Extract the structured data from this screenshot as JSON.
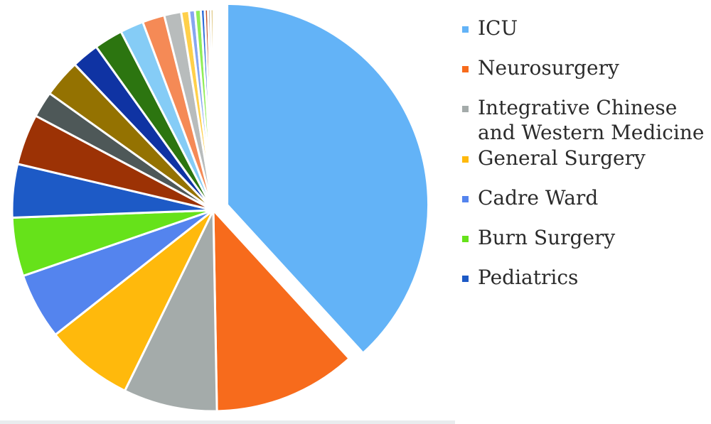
{
  "chart_data": {
    "type": "pie",
    "title": "",
    "legend_position": "right",
    "exploded_first_slice": true,
    "slices": [
      {
        "label": "ICU",
        "value": 36.5,
        "color": "#63b3f7"
      },
      {
        "label": "Neurosurgery",
        "value": 11.0,
        "color": "#f76b1c"
      },
      {
        "label": "Integrative Chinese and Western Medicine",
        "value": 7.2,
        "color": "#a4abaa"
      },
      {
        "label": "General Surgery",
        "value": 6.8,
        "color": "#ffb90c"
      },
      {
        "label": "Cadre Ward",
        "value": 5.1,
        "color": "#5484ee"
      },
      {
        "label": "Burn Surgery",
        "value": 4.5,
        "color": "#66e21a"
      },
      {
        "label": "Pediatrics",
        "value": 4.1,
        "color": "#1d5ac6"
      },
      {
        "label": "",
        "value": 3.9,
        "color": "#9c3205"
      },
      {
        "label": "",
        "value": 2.0,
        "color": "#4e5858"
      },
      {
        "label": "",
        "value": 2.9,
        "color": "#947201"
      },
      {
        "label": "",
        "value": 2.1,
        "color": "#0f33a3"
      },
      {
        "label": "",
        "value": 2.2,
        "color": "#2c7510"
      },
      {
        "label": "",
        "value": 1.8,
        "color": "#85ccf6"
      },
      {
        "label": "",
        "value": 1.7,
        "color": "#f58a56"
      },
      {
        "label": "",
        "value": 1.3,
        "color": "#b8bcbc"
      },
      {
        "label": "",
        "value": 0.6,
        "color": "#ffd04a"
      },
      {
        "label": "",
        "value": 0.45,
        "color": "#86a6f0"
      },
      {
        "label": "",
        "value": 0.45,
        "color": "#90ee58"
      },
      {
        "label": "",
        "value": 0.3,
        "color": "#2a6bd9"
      },
      {
        "label": "",
        "value": 0.25,
        "color": "#c0502a"
      },
      {
        "label": "",
        "value": 0.2,
        "color": "#7f8585"
      },
      {
        "label": "",
        "value": 0.2,
        "color": "#c69a18"
      }
    ],
    "legend": [
      {
        "label": "ICU",
        "color": "#63b3f7"
      },
      {
        "label": "Neurosurgery",
        "color": "#f76b1c"
      },
      {
        "label": "Integrative Chinese and Western Medicine",
        "color": "#a4abaa"
      },
      {
        "label": "General Surgery",
        "color": "#ffb90c"
      },
      {
        "label": "Cadre Ward",
        "color": "#5484ee"
      },
      {
        "label": "Burn Surgery",
        "color": "#66e21a"
      },
      {
        "label": "Pediatrics",
        "color": "#1d5ac6"
      }
    ]
  }
}
